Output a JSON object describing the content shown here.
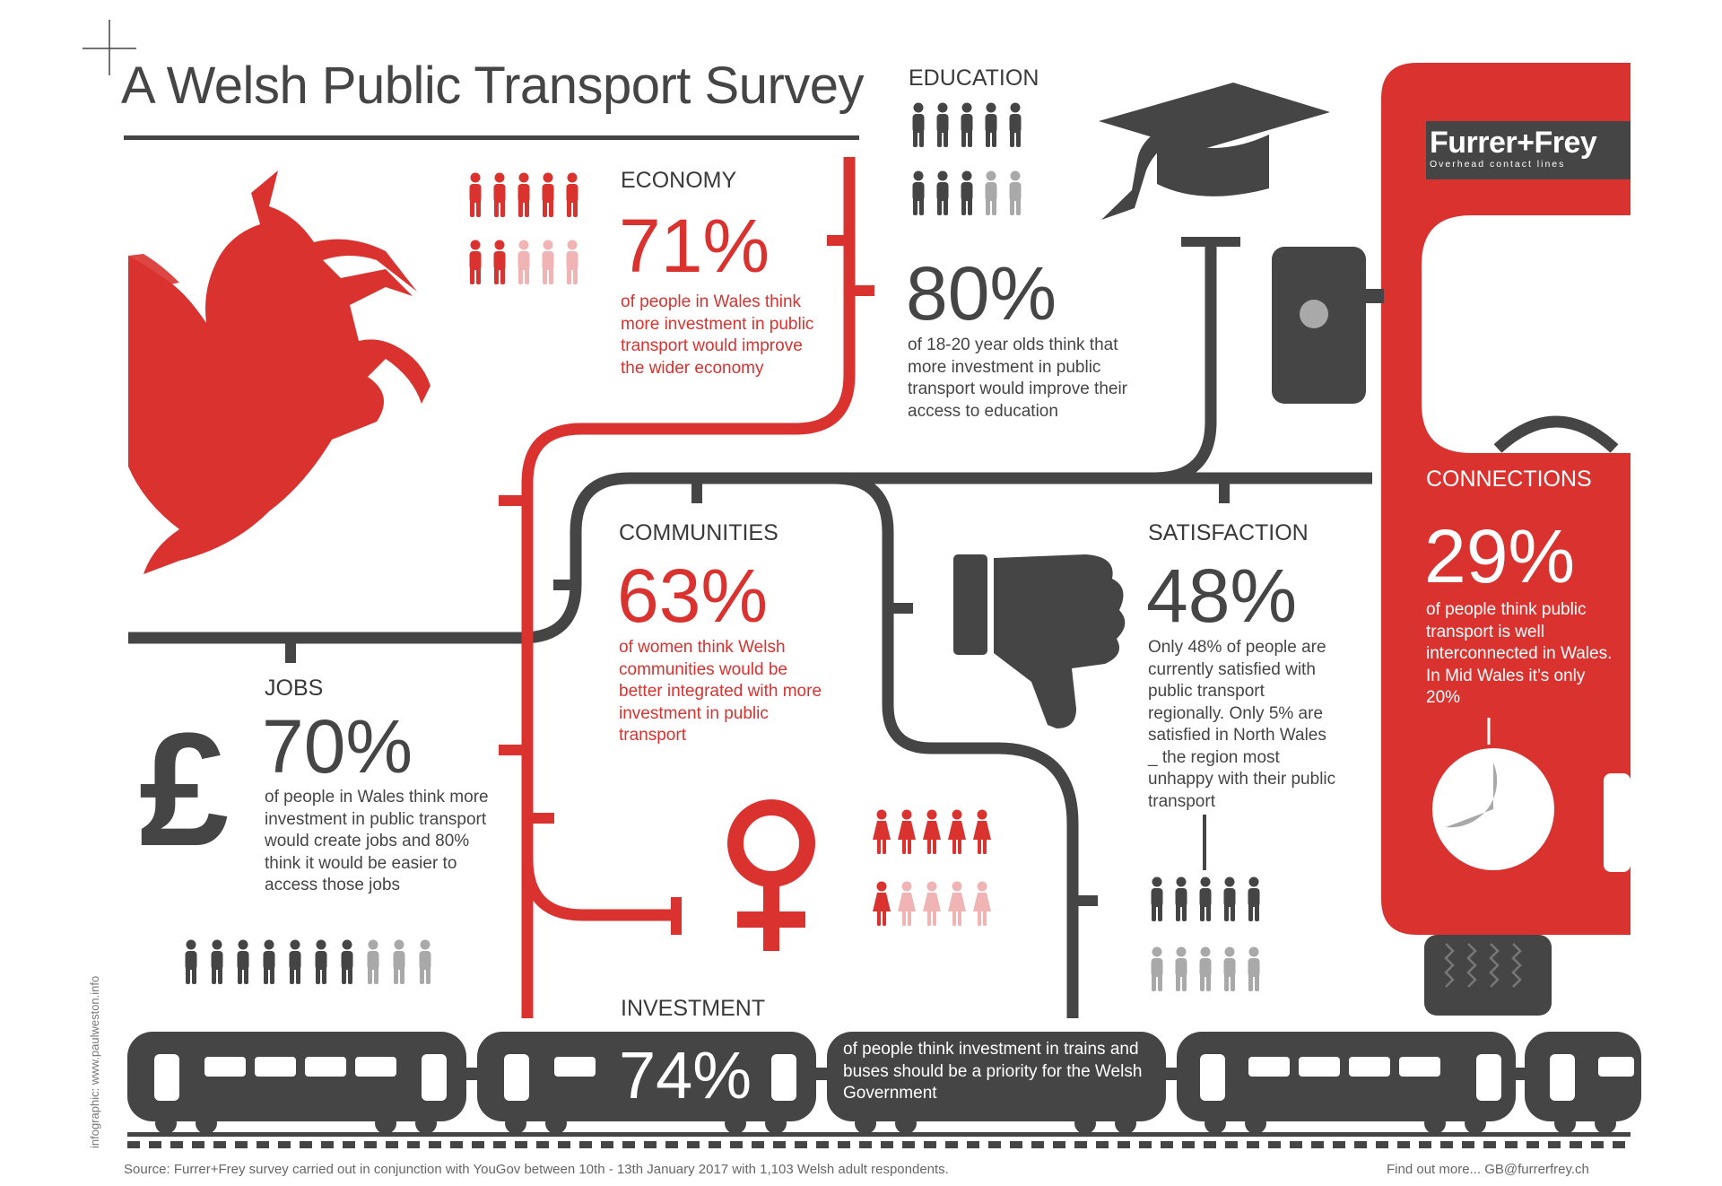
{
  "title": "A Welsh Public Transport Survey",
  "logo": {
    "brand": "Furrer+Frey",
    "tagline": "Overhead contact lines"
  },
  "colors": {
    "red": "#d9322f",
    "dark": "#454545",
    "grey": "#a9a9a9",
    "pink": "#f0b4b4"
  },
  "sections": {
    "economy": {
      "heading": "ECONOMY",
      "percent": "71%",
      "text": "of people in Wales think more investment in public transport would improve the wider economy",
      "icon": "people-icon",
      "value": 71
    },
    "education": {
      "heading": "EDUCATION",
      "percent": "80%",
      "text": "of 18-20 year olds think that more investment in public transport would improve their access to education",
      "icon": "graduation-cap-icon",
      "value": 80
    },
    "communities": {
      "heading": "COMMUNITIES",
      "percent": "63%",
      "text": "of women think Welsh communities would be better integrated with more investment in public transport",
      "icon": "female-symbol-icon",
      "value": 63
    },
    "satisfaction": {
      "heading": "SATISFACTION",
      "percent": "48%",
      "text": "Only 48% of people are currently satisfied with public transport regionally. Only 5% are satisfied in North Wales _ the region most unhappy with their public transport",
      "icon": "thumbs-down-icon",
      "value": 48
    },
    "connections": {
      "heading": "CONNECTIONS",
      "percent": "29%",
      "text": "of people think public transport is well interconnected in Wales. In Mid Wales it’s only 20%",
      "icon": "pie-icon",
      "value": 29,
      "mid_wales_value": 20
    },
    "jobs": {
      "heading": "JOBS",
      "percent": "70%",
      "text": "of people in Wales think more investment in public transport would create jobs and 80% think it would be easier to access those jobs",
      "icon": "pound-icon",
      "value": 70
    },
    "investment": {
      "heading": "INVESTMENT",
      "percent": "74%",
      "text": "of people think investment in trains and buses should be a priority for the Welsh Government",
      "icon": "train-icon",
      "value": 74
    }
  },
  "footer": {
    "source": "Source:  Furrer+Frey survey carried out in conjunction with YouGov between 10th - 13th January 2017 with 1,103 Welsh adult respondents.",
    "contact": "Find out more... GB@furrerfrey.ch",
    "credit": "infographic: www.paulweston.info"
  }
}
